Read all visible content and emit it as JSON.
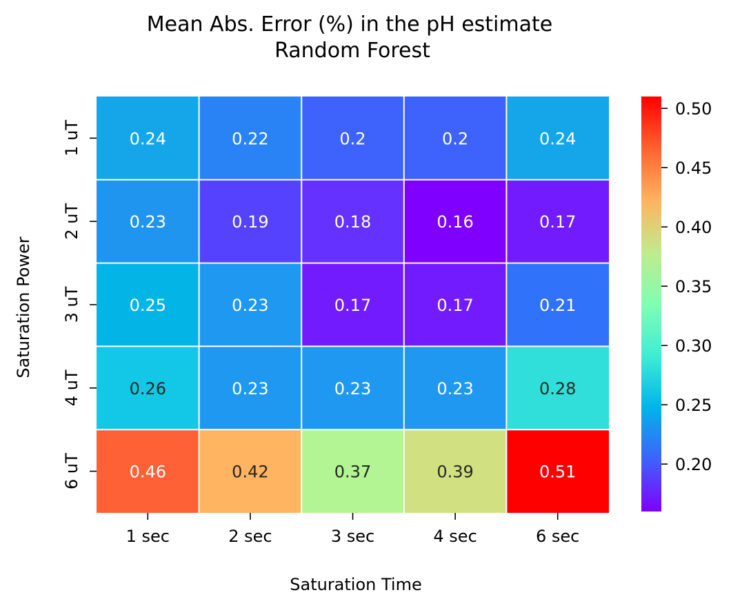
{
  "chart_data": {
    "type": "heatmap",
    "title": "Mean Abs. Error (%) in the pH estimate",
    "subtitle": "Random Forest",
    "xlabel": "Saturation Time",
    "ylabel": "Saturation Power",
    "x_categories": [
      "1 sec",
      "2 sec",
      "3 sec",
      "4 sec",
      "6 sec"
    ],
    "y_categories": [
      "1 uT",
      "2 uT",
      "3 uT",
      "4 uT",
      "6 uT"
    ],
    "values": [
      [
        0.24,
        0.22,
        0.2,
        0.2,
        0.24
      ],
      [
        0.23,
        0.19,
        0.18,
        0.16,
        0.17
      ],
      [
        0.25,
        0.23,
        0.17,
        0.17,
        0.21
      ],
      [
        0.26,
        0.23,
        0.23,
        0.23,
        0.28
      ],
      [
        0.46,
        0.42,
        0.37,
        0.39,
        0.51
      ]
    ],
    "cell_labels": [
      [
        "0.24",
        "0.22",
        "0.2",
        "0.2",
        "0.24"
      ],
      [
        "0.23",
        "0.19",
        "0.18",
        "0.16",
        "0.17"
      ],
      [
        "0.25",
        "0.23",
        "0.17",
        "0.17",
        "0.21"
      ],
      [
        "0.26",
        "0.23",
        "0.23",
        "0.23",
        "0.28"
      ],
      [
        "0.46",
        "0.42",
        "0.37",
        "0.39",
        "0.51"
      ]
    ],
    "colormap": "rainbow",
    "cell_colors": [
      [
        "#15a6ea",
        "#2a83f5",
        "#3e62fc",
        "#3e62fc",
        "#15a6ea"
      ],
      [
        "#2095f0",
        "#5442fe",
        "#6531ff",
        "#7f00ff",
        "#721bff"
      ],
      [
        "#03b5e6",
        "#1f98f2",
        "#721bff",
        "#721bff",
        "#3172fb"
      ],
      [
        "#12c8e6",
        "#1f98f2",
        "#1f98f2",
        "#1f98f2",
        "#30dfd9"
      ],
      [
        "#ff6136",
        "#ffb462",
        "#b3f592",
        "#d1e181",
        "#ff0000"
      ]
    ],
    "cell_text_colors": [
      [
        "#ffffff",
        "#ffffff",
        "#ffffff",
        "#ffffff",
        "#ffffff"
      ],
      [
        "#ffffff",
        "#ffffff",
        "#ffffff",
        "#ffffff",
        "#ffffff"
      ],
      [
        "#ffffff",
        "#ffffff",
        "#ffffff",
        "#ffffff",
        "#ffffff"
      ],
      [
        "#262626",
        "#ffffff",
        "#ffffff",
        "#ffffff",
        "#262626"
      ],
      [
        "#ffffff",
        "#262626",
        "#262626",
        "#262626",
        "#ffffff"
      ]
    ],
    "colorbar": {
      "vmin": 0.16,
      "vmax": 0.51,
      "ticks": [
        0.2,
        0.25,
        0.3,
        0.35,
        0.4,
        0.45,
        0.5
      ],
      "tick_labels": [
        "0.20",
        "0.25",
        "0.30",
        "0.35",
        "0.40",
        "0.45",
        "0.50"
      ],
      "gradient_stops": [
        "#7f00ff",
        "#3f61fc",
        "#00b4eb",
        "#40ecd4",
        "#80feb3",
        "#c0eb8d",
        "#ffb360",
        "#ff622f",
        "#ff0000"
      ]
    },
    "grid_line_color": "#ffffff"
  }
}
